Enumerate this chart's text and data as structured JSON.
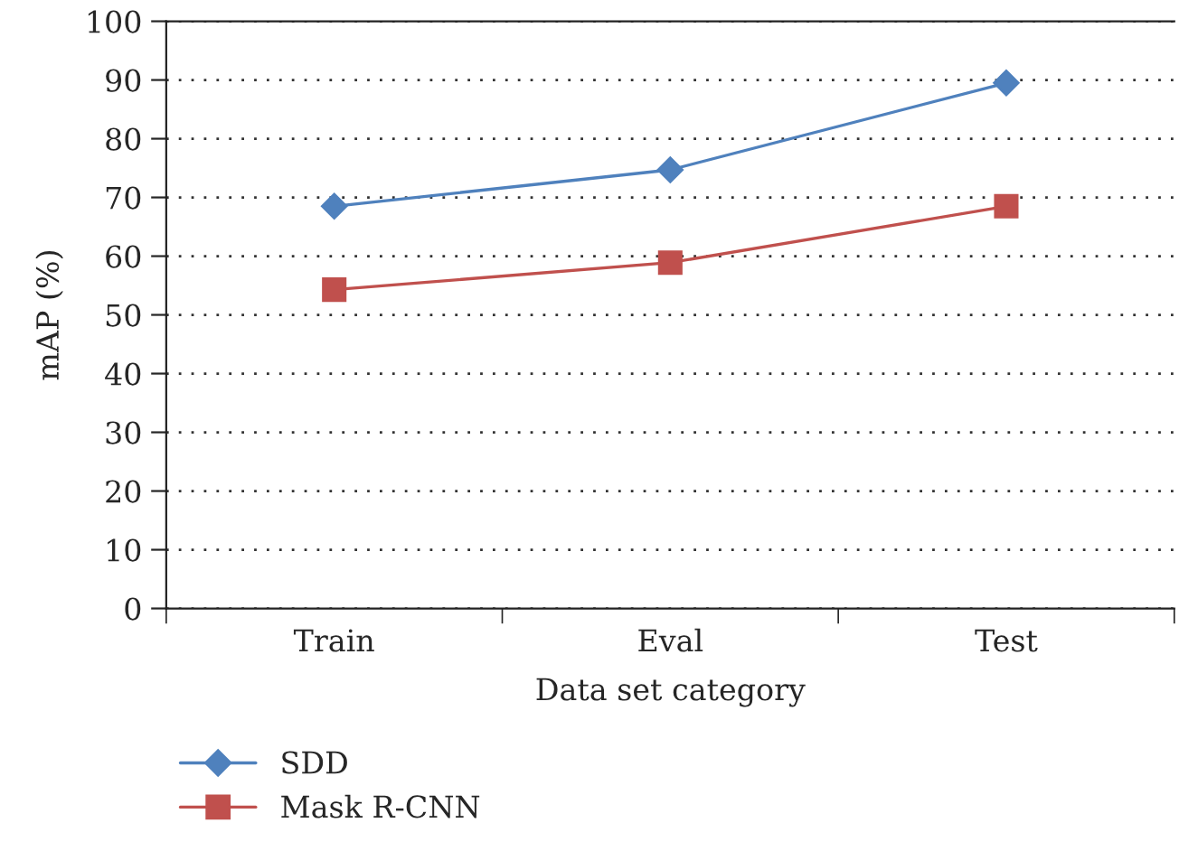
{
  "chart_data": {
    "type": "line",
    "xlabel": "Data set category",
    "ylabel": "mAP (%)",
    "categories": [
      "Train",
      "Eval",
      "Test"
    ],
    "series": [
      {
        "name": "SDD",
        "color": "#4f81bd",
        "marker": "diamond",
        "values": [
          68.5,
          74.7,
          89.5
        ]
      },
      {
        "name": "Mask R-CNN",
        "color": "#c0504d",
        "marker": "square",
        "values": [
          54.3,
          58.9,
          68.5
        ]
      }
    ],
    "ylim": [
      0,
      100
    ],
    "yticks": [
      0,
      10,
      20,
      30,
      40,
      50,
      60,
      70,
      80,
      90,
      100
    ],
    "grid": "y",
    "legend": "bottom left",
    "line_style": "solid"
  }
}
